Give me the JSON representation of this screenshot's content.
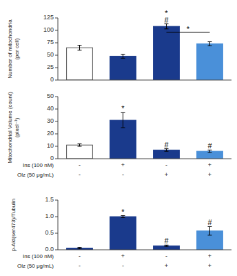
{
  "chart_data": [
    {
      "type": "bar",
      "ylabel": "Number of mitochondria\n(per cell)",
      "categories": [
        null,
        null,
        null,
        null
      ],
      "values": [
        65,
        48,
        108,
        73
      ],
      "errors": [
        5,
        4,
        5,
        4
      ],
      "colors": [
        "#ffffff",
        "#1a3a8c",
        "#1a3a8c",
        "#4a90d9"
      ],
      "ylim": [
        0,
        125
      ],
      "yticks": [
        0,
        25,
        50,
        75,
        100,
        125
      ],
      "grid": false,
      "annotations": [
        {
          "text": "#",
          "category": 2
        },
        {
          "text": "*",
          "category": 2
        },
        {
          "text": "*",
          "categories": [
            2,
            3
          ],
          "y": 96
        }
      ]
    },
    {
      "type": "bar",
      "ylabel": "Mitochondrial Volume (count)\n(pixel⁻¹)",
      "categories": [
        null,
        null,
        null,
        null
      ],
      "category_rows": [
        {
          "name": "Ins (100 nM)",
          "labels": [
            "-",
            "+",
            "-",
            "+"
          ]
        },
        {
          "name": "Olz (50 μg/mL)",
          "labels": [
            "-",
            "-",
            "+",
            "+"
          ]
        }
      ],
      "values": [
        11,
        31,
        7,
        6
      ],
      "errors": [
        1,
        6,
        1,
        1
      ],
      "colors": [
        "#ffffff",
        "#1a3a8c",
        "#1a3a8c",
        "#4a90d9"
      ],
      "ylim": [
        0,
        50
      ],
      "yticks": [
        0,
        10,
        20,
        30,
        40,
        50
      ],
      "grid": false,
      "annotations": [
        {
          "text": "*",
          "category": 1
        },
        {
          "text": "#",
          "category": 2
        },
        {
          "text": "#",
          "category": 3
        }
      ]
    },
    {
      "type": "bar",
      "ylabel": "p-Akt(ser473)/Tubulin",
      "categories": [
        null,
        null,
        null,
        null
      ],
      "category_rows": [
        {
          "name": "Ins (100 nM)",
          "labels": [
            "-",
            "+",
            "-",
            "+"
          ]
        },
        {
          "name": "Olz (50 μg/mL)",
          "labels": [
            "-",
            "-",
            "+",
            "+"
          ]
        }
      ],
      "values": [
        0.05,
        1.0,
        0.12,
        0.57
      ],
      "errors": [
        0.02,
        0.03,
        0.02,
        0.13
      ],
      "colors": [
        "#1a3a8c",
        "#1a3a8c",
        "#1a3a8c",
        "#4a90d9"
      ],
      "ylim": [
        0,
        1.5
      ],
      "yticks": [
        {
          "value": 0.0,
          "label": "0.0"
        },
        0.5,
        {
          "value": 1.0,
          "label": "1.0"
        },
        1.5
      ],
      "grid": false,
      "annotations": [
        {
          "text": "*",
          "category": 1
        },
        {
          "text": "#",
          "category": 2
        },
        {
          "text": "#",
          "category": 3
        }
      ]
    }
  ]
}
